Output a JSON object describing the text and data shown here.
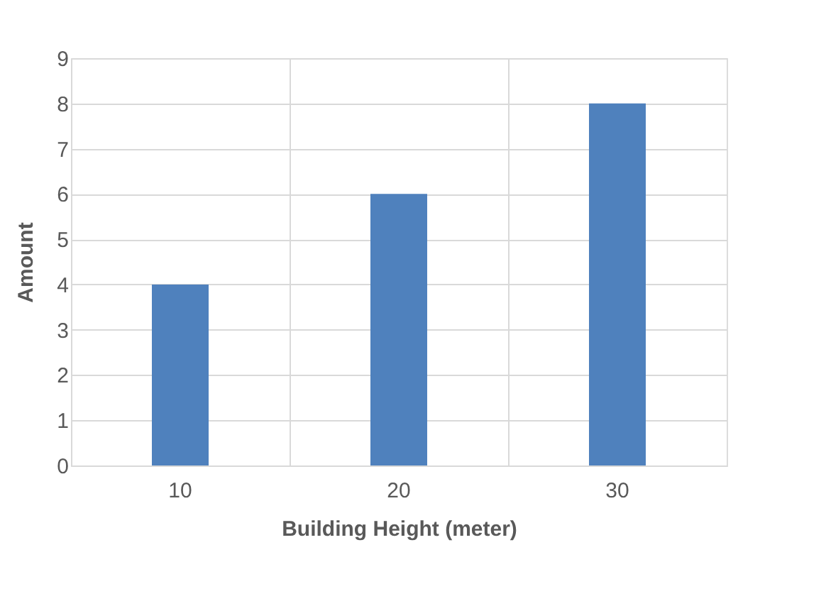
{
  "chart_data": {
    "type": "bar",
    "xlabel": "Building Height (meter)",
    "ylabel": "Amount",
    "categories": [
      "10",
      "20",
      "30"
    ],
    "values": [
      4,
      6,
      8
    ],
    "color": "#4f81bd",
    "ylim": [
      0,
      9
    ],
    "yticks": [
      0,
      1,
      2,
      3,
      4,
      5,
      6,
      7,
      8,
      9
    ],
    "grid": true
  }
}
